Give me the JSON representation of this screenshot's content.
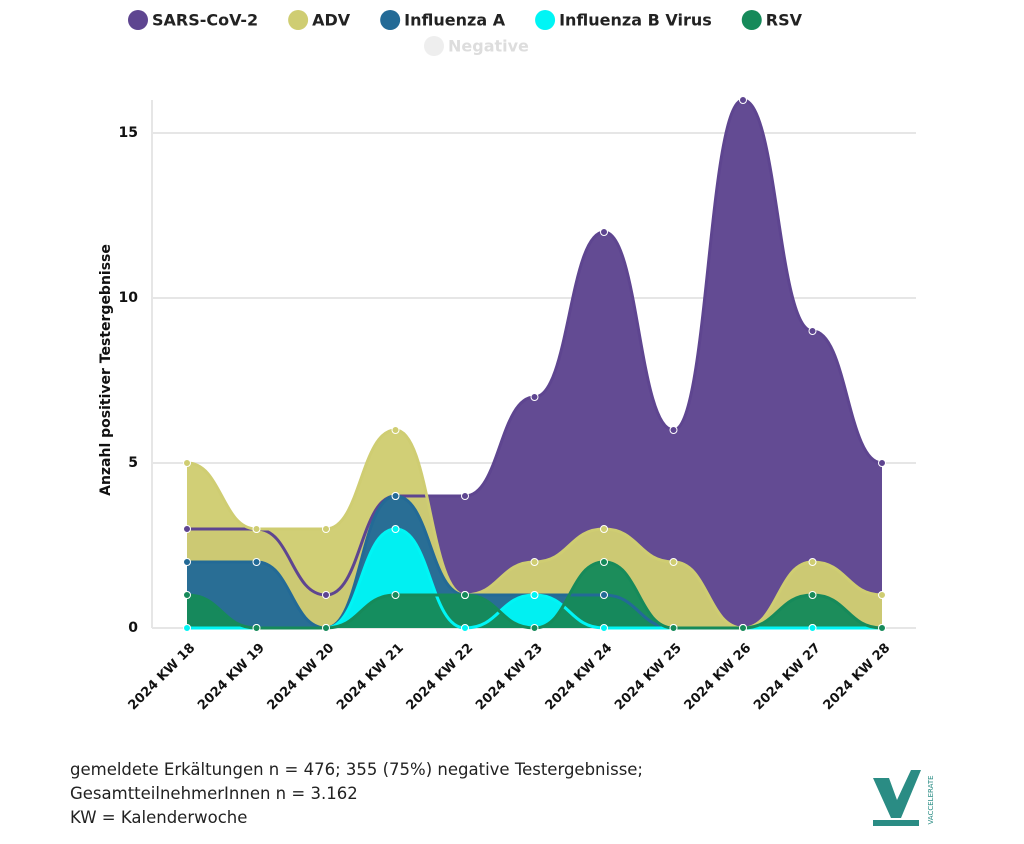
{
  "chart_data": {
    "type": "area",
    "categories": [
      "2024 KW 18",
      "2024 KW 19",
      "2024 KW 20",
      "2024 KW 21",
      "2024 KW 22",
      "2024 KW 23",
      "2024 KW 24",
      "2024 KW 25",
      "2024 KW 26",
      "2024 KW 27",
      "2024 KW 28"
    ],
    "series": [
      {
        "name": "SARS-CoV-2",
        "color": "#5e4590",
        "values": [
          3,
          3,
          1,
          4,
          4,
          7,
          12,
          6,
          16,
          9,
          5
        ]
      },
      {
        "name": "ADV",
        "color": "#cfcd72",
        "values": [
          5,
          3,
          3,
          6,
          1,
          2,
          3,
          2,
          0,
          2,
          1
        ]
      },
      {
        "name": "Influenza A",
        "color": "#236a96",
        "values": [
          2,
          2,
          0,
          4,
          1,
          1,
          1,
          0,
          0,
          0,
          0
        ]
      },
      {
        "name": "Influenza B Virus",
        "color": "#00f5f5",
        "values": [
          0,
          0,
          0,
          3,
          0,
          1,
          0,
          0,
          0,
          0,
          0
        ]
      },
      {
        "name": "RSV",
        "color": "#168a5a",
        "values": [
          1,
          0,
          0,
          1,
          1,
          0,
          2,
          0,
          0,
          1,
          0
        ]
      }
    ],
    "legend_hidden": [
      "Negative"
    ],
    "ylabel": "Anzahl positiver Testergebnisse",
    "ylim": [
      0,
      16
    ],
    "yticks": [
      0,
      5,
      10,
      15
    ],
    "grid": true,
    "footnotes": [
      "gemeldete Erkältungen n = 476; 355 (75%) negative Testergebnisse; GesamtteilnehmerInnen n = 3.162",
      "KW = Kalenderwoche"
    ],
    "logo": "VACCELERATE"
  }
}
